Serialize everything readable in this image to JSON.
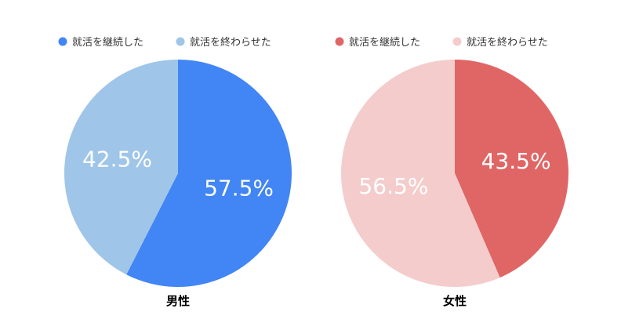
{
  "chart_data": [
    {
      "type": "pie",
      "title": "男性",
      "categories": [
        "就活を継続した",
        "就活を終わらせた"
      ],
      "values": [
        57.5,
        42.5
      ],
      "labels": [
        "57.5%",
        "42.5%"
      ],
      "colors": [
        "#4285f4",
        "#9fc5e8"
      ],
      "legend": "top"
    },
    {
      "type": "pie",
      "title": "女性",
      "categories": [
        "就活を継続した",
        "就活を終わらせた"
      ],
      "values": [
        43.5,
        56.5
      ],
      "labels": [
        "43.5%",
        "56.5%"
      ],
      "colors": [
        "#e06666",
        "#f4cccc"
      ],
      "legend": "top"
    }
  ]
}
